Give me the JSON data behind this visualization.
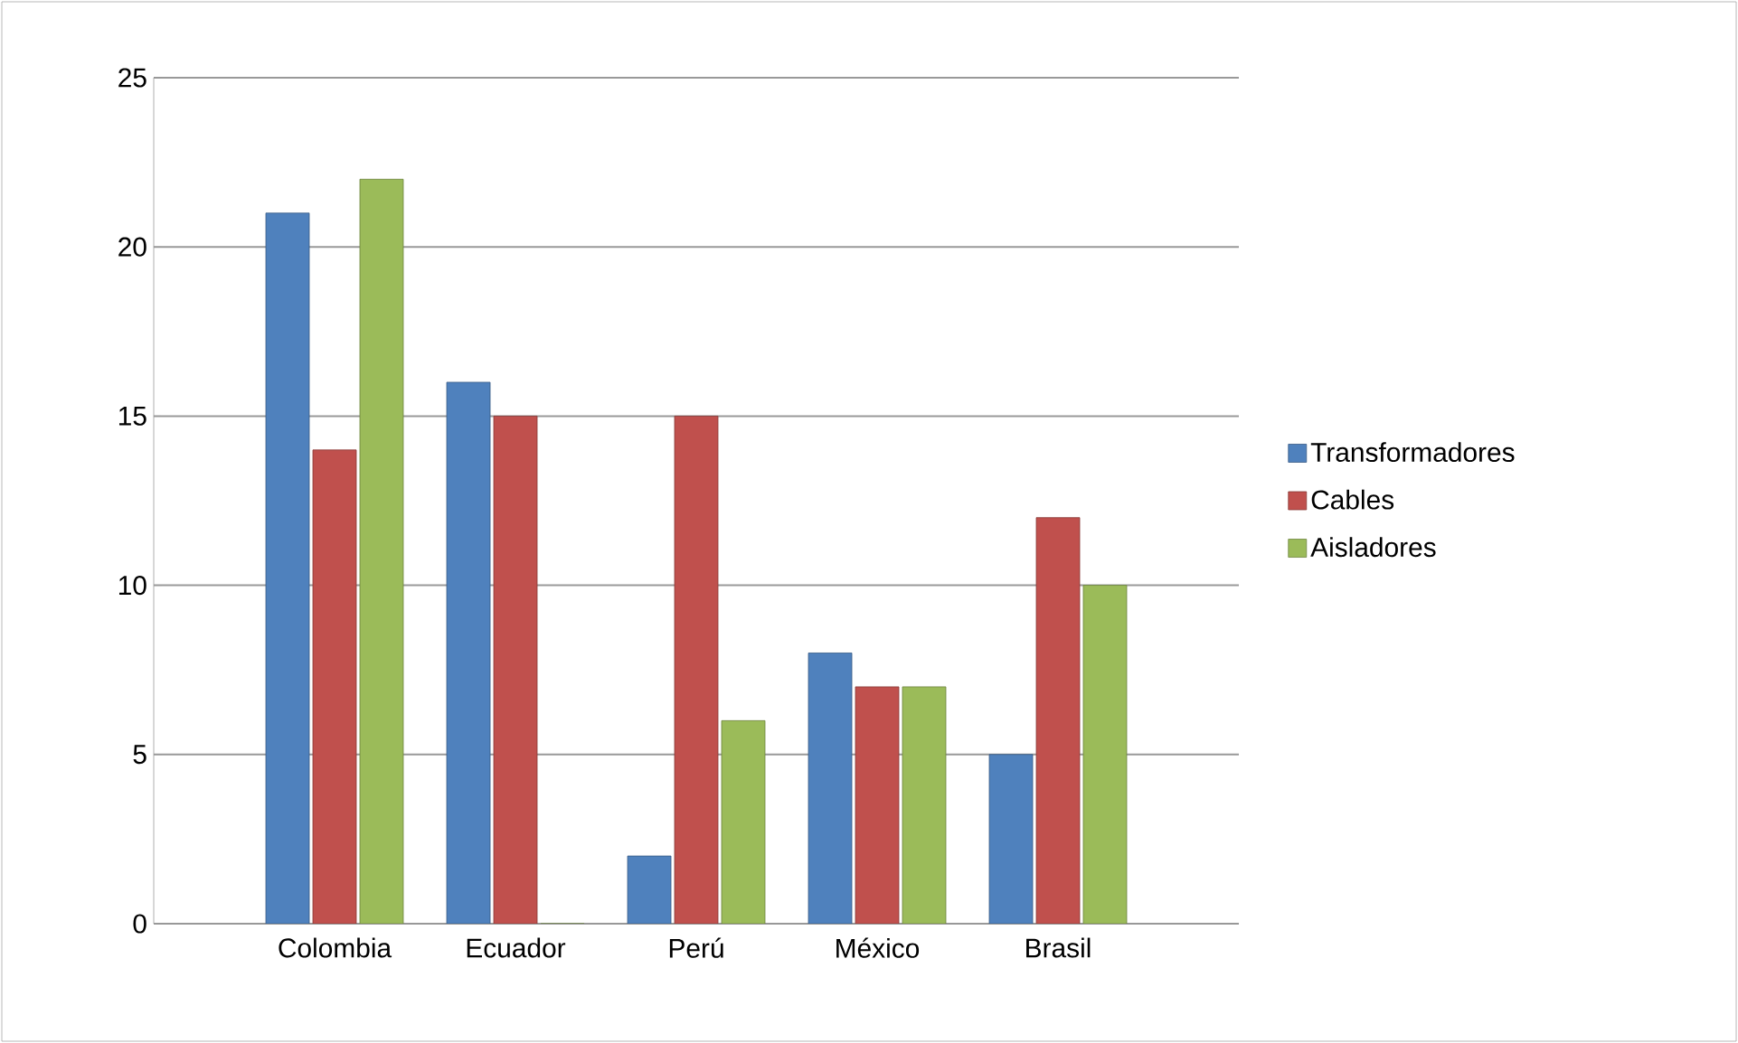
{
  "chart_data": {
    "type": "bar",
    "categories": [
      "Colombia",
      "Ecuador",
      "Perú",
      "México",
      "Brasil"
    ],
    "series": [
      {
        "name": "Transformadores",
        "color": "#4f81bd",
        "values": [
          21,
          16,
          2,
          8,
          5
        ]
      },
      {
        "name": "Cables",
        "color": "#c0504d",
        "values": [
          14,
          15,
          15,
          7,
          12
        ]
      },
      {
        "name": "Aisladores",
        "color": "#9bbb59",
        "values": [
          22,
          0,
          6,
          7,
          10
        ]
      }
    ],
    "ylim": [
      0,
      25
    ],
    "yticks": [
      0,
      5,
      10,
      15,
      20,
      25
    ],
    "grid": "y",
    "legend": "right"
  }
}
